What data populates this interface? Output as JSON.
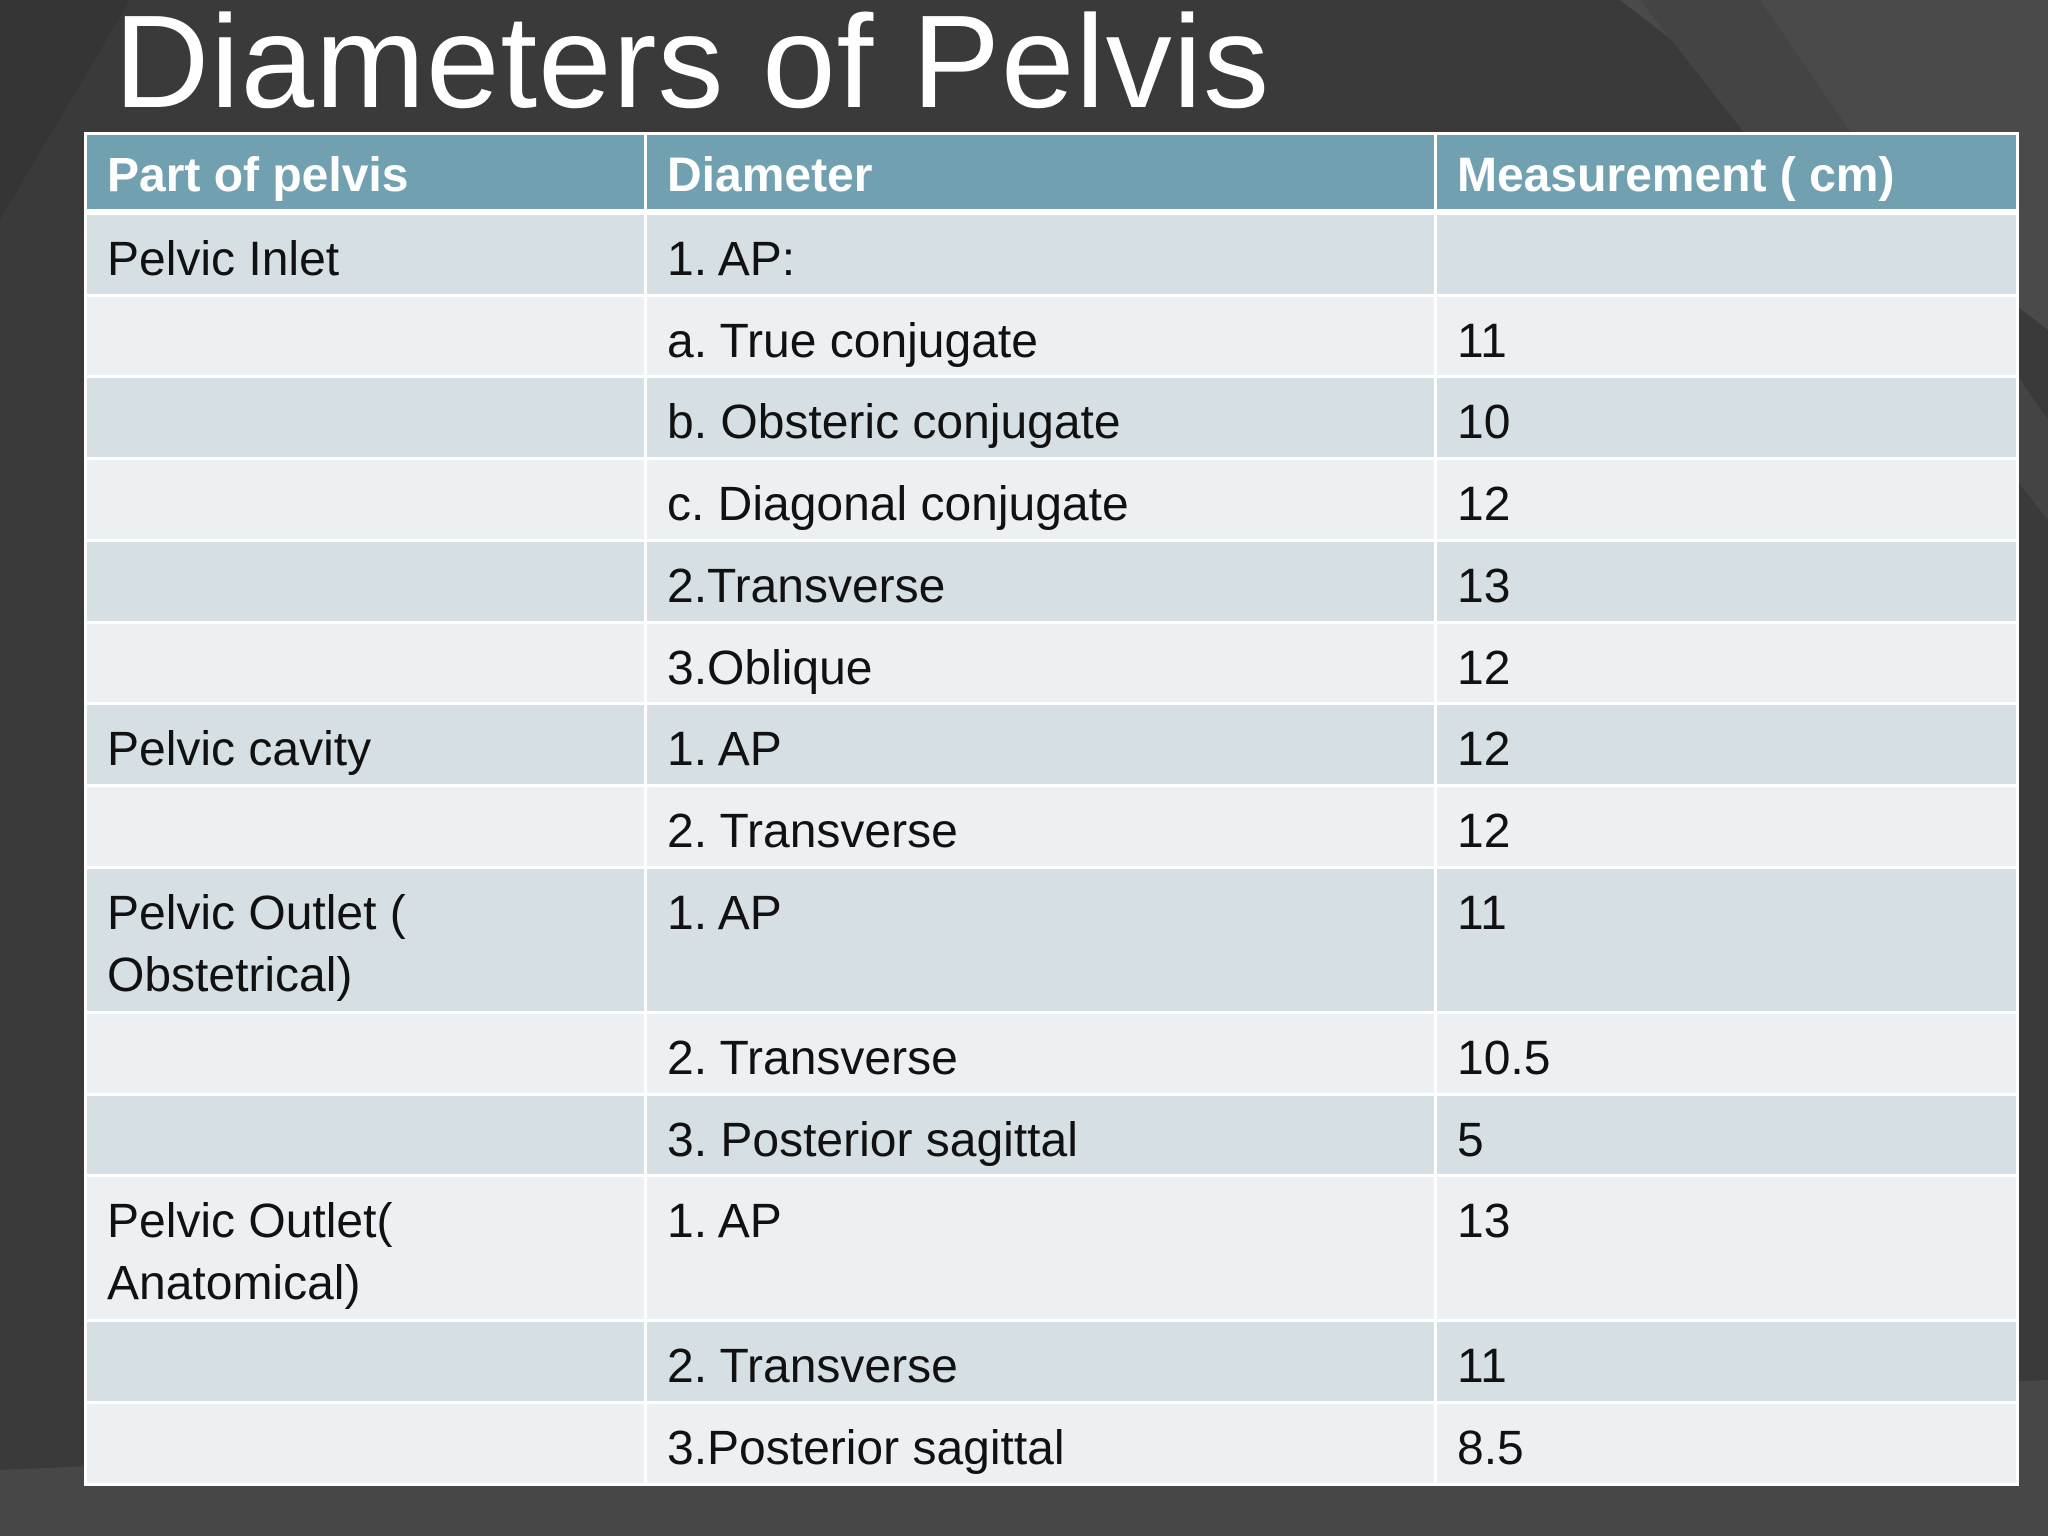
{
  "slide": {
    "title": "Diameters of Pelvis"
  },
  "colors": {
    "background": "#3b3b3b",
    "header": "#71a0b0",
    "row_dark": "#d6e0e4",
    "row_light": "#ecf0f3"
  },
  "table": {
    "headers": [
      "Part of pelvis",
      "Diameter",
      "Measurement ( cm)"
    ],
    "rows": [
      {
        "part": "Pelvic Inlet",
        "diameter": "1. AP:",
        "measurement": ""
      },
      {
        "part": "",
        "diameter": "a. True conjugate",
        "measurement": "11"
      },
      {
        "part": "",
        "diameter": "b. Obsteric conjugate",
        "measurement": "10"
      },
      {
        "part": "",
        "diameter": "c. Diagonal conjugate",
        "measurement": "12"
      },
      {
        "part": "",
        "diameter": "2.Transverse",
        "measurement": "13"
      },
      {
        "part": "",
        "diameter": "3.Oblique",
        "measurement": "12"
      },
      {
        "part": "Pelvic cavity",
        "diameter": "1. AP",
        "measurement": "12"
      },
      {
        "part": "",
        "diameter": "2. Transverse",
        "measurement": "12"
      },
      {
        "part": "Pelvic Outlet ( Obstetrical)",
        "diameter": "1. AP",
        "measurement": "11"
      },
      {
        "part": "",
        "diameter": "2. Transverse",
        "measurement": "10.5"
      },
      {
        "part": "",
        "diameter": "3. Posterior sagittal",
        "measurement": "5"
      },
      {
        "part": "Pelvic Outlet( Anatomical)",
        "diameter": "1. AP",
        "measurement": "13"
      },
      {
        "part": "",
        "diameter": "2. Transverse",
        "measurement": "11"
      },
      {
        "part": "",
        "diameter": "3.Posterior sagittal",
        "measurement": "8.5"
      }
    ]
  }
}
